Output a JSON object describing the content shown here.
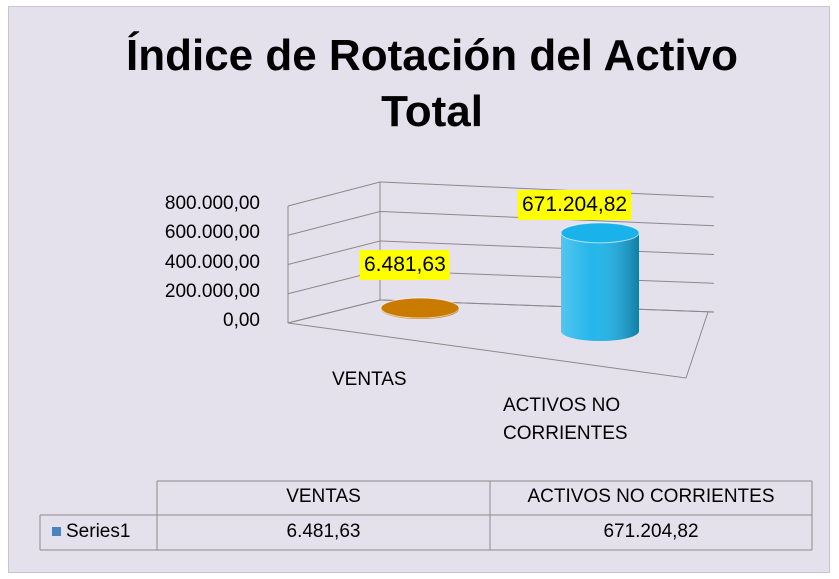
{
  "chart_data": {
    "type": "bar3d",
    "title": "Índice de Rotación del Activo Total",
    "categories": [
      "VENTAS",
      "ACTIVOS NO CORRIENTES"
    ],
    "series": [
      {
        "name": "Series1",
        "color": "#4f81bd",
        "point_colors": [
          "#c97a00",
          "#19b2ea"
        ],
        "values": [
          6481.63,
          671204.82
        ],
        "value_labels": [
          "6.481,63",
          "671.204,82"
        ]
      }
    ],
    "ylim": [
      0,
      800000
    ],
    "yticks": [
      {
        "value": 0,
        "label": "0,00"
      },
      {
        "value": 200000,
        "label": "200.000,00"
      },
      {
        "value": 400000,
        "label": "400.000,00"
      },
      {
        "value": 600000,
        "label": "600.000,00"
      },
      {
        "value": 800000,
        "label": "800.000,00"
      }
    ],
    "grid": true,
    "data_table": true
  }
}
